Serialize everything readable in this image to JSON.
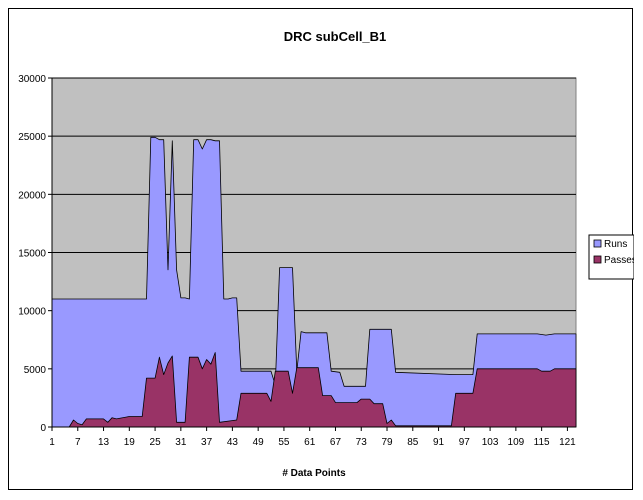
{
  "chart_data": {
    "type": "area",
    "title": "DRC  subCell_B1",
    "xlabel": "# Data Points",
    "ylabel": "",
    "ylim": [
      0,
      30000
    ],
    "yticks": [
      0,
      5000,
      10000,
      15000,
      20000,
      25000,
      30000
    ],
    "xticks": [
      1,
      7,
      13,
      19,
      25,
      31,
      37,
      43,
      49,
      55,
      61,
      67,
      73,
      79,
      85,
      91,
      97,
      103,
      109,
      115,
      121
    ],
    "xlim": [
      1,
      123
    ],
    "grid": true,
    "legend_position": "right",
    "series": [
      {
        "name": "Runs",
        "color": "#9999ff",
        "points": [
          [
            1,
            11000
          ],
          [
            23,
            11000
          ],
          [
            24,
            24900
          ],
          [
            25,
            24900
          ],
          [
            26,
            24700
          ],
          [
            27,
            24700
          ],
          [
            28,
            13500
          ],
          [
            29,
            24600
          ],
          [
            30,
            13500
          ],
          [
            31,
            11100
          ],
          [
            32,
            11100
          ],
          [
            33,
            11000
          ],
          [
            34,
            24700
          ],
          [
            35,
            24700
          ],
          [
            36,
            23900
          ],
          [
            37,
            24700
          ],
          [
            38,
            24700
          ],
          [
            39,
            24600
          ],
          [
            40,
            24600
          ],
          [
            41,
            11000
          ],
          [
            42,
            11000
          ],
          [
            43,
            11100
          ],
          [
            44,
            11100
          ],
          [
            45,
            4800
          ],
          [
            52,
            4800
          ],
          [
            53,
            3600
          ],
          [
            54,
            13700
          ],
          [
            57,
            13700
          ],
          [
            58,
            4800
          ],
          [
            59,
            8200
          ],
          [
            60,
            8100
          ],
          [
            65,
            8100
          ],
          [
            66,
            4800
          ],
          [
            68,
            4700
          ],
          [
            69,
            3500
          ],
          [
            74,
            3500
          ],
          [
            75,
            8400
          ],
          [
            80,
            8400
          ],
          [
            81,
            4700
          ],
          [
            95,
            4500
          ],
          [
            99,
            4500
          ],
          [
            100,
            8000
          ],
          [
            114,
            8000
          ],
          [
            116,
            7900
          ],
          [
            118,
            8000
          ],
          [
            123,
            8000
          ]
        ]
      },
      {
        "name": "Passes",
        "color": "#993366",
        "points": [
          [
            1,
            0
          ],
          [
            5,
            0
          ],
          [
            6,
            600
          ],
          [
            7,
            300
          ],
          [
            8,
            200
          ],
          [
            9,
            700
          ],
          [
            13,
            700
          ],
          [
            14,
            400
          ],
          [
            15,
            800
          ],
          [
            16,
            700
          ],
          [
            19,
            900
          ],
          [
            22,
            900
          ],
          [
            23,
            4200
          ],
          [
            25,
            4200
          ],
          [
            26,
            6000
          ],
          [
            27,
            4500
          ],
          [
            28,
            5500
          ],
          [
            29,
            6100
          ],
          [
            30,
            400
          ],
          [
            32,
            400
          ],
          [
            33,
            6000
          ],
          [
            35,
            6000
          ],
          [
            36,
            5000
          ],
          [
            37,
            5800
          ],
          [
            38,
            5400
          ],
          [
            39,
            6400
          ],
          [
            40,
            400
          ],
          [
            44,
            600
          ],
          [
            45,
            2900
          ],
          [
            51,
            2900
          ],
          [
            52,
            2200
          ],
          [
            53,
            4800
          ],
          [
            56,
            4800
          ],
          [
            57,
            2900
          ],
          [
            58,
            5100
          ],
          [
            63,
            5100
          ],
          [
            64,
            2700
          ],
          [
            66,
            2700
          ],
          [
            67,
            2100
          ],
          [
            72,
            2100
          ],
          [
            73,
            2400
          ],
          [
            75,
            2400
          ],
          [
            76,
            2000
          ],
          [
            78,
            2000
          ],
          [
            79,
            300
          ],
          [
            80,
            600
          ],
          [
            81,
            100
          ],
          [
            94,
            100
          ],
          [
            95,
            2900
          ],
          [
            99,
            2900
          ],
          [
            100,
            5000
          ],
          [
            114,
            5000
          ],
          [
            115,
            4800
          ],
          [
            117,
            4800
          ],
          [
            118,
            5000
          ],
          [
            123,
            5000
          ]
        ]
      }
    ]
  }
}
